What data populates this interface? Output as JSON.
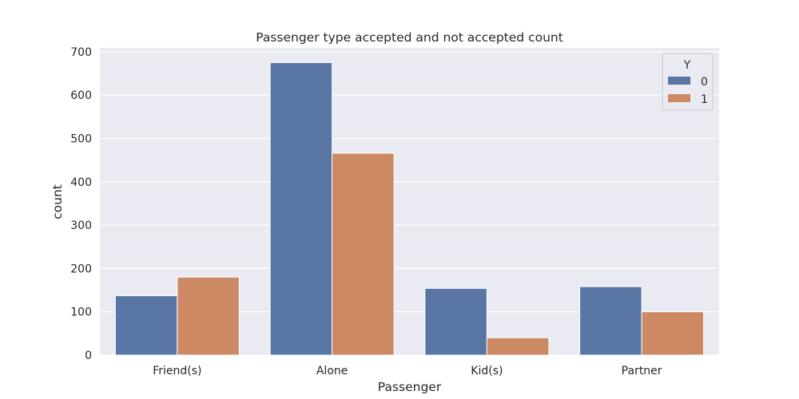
{
  "chart_data": {
    "type": "bar",
    "title": "Passenger type accepted and not accepted count",
    "xlabel": "Passenger",
    "ylabel": "count",
    "categories": [
      "Friend(s)",
      "Alone",
      "Kid(s)",
      "Partner"
    ],
    "series": [
      {
        "name": "0",
        "values": [
          137,
          675,
          154,
          158
        ],
        "color": "#5975a4"
      },
      {
        "name": "1",
        "values": [
          180,
          466,
          40,
          100
        ],
        "color": "#cc8963"
      }
    ],
    "ylim": [
      0,
      709
    ],
    "yticks": [
      0,
      100,
      200,
      300,
      400,
      500,
      600,
      700
    ],
    "legend": {
      "title": "Y",
      "placement": "top-right"
    },
    "grid": true,
    "background": "#eaeaf2",
    "grid_color": "#ffffff"
  }
}
